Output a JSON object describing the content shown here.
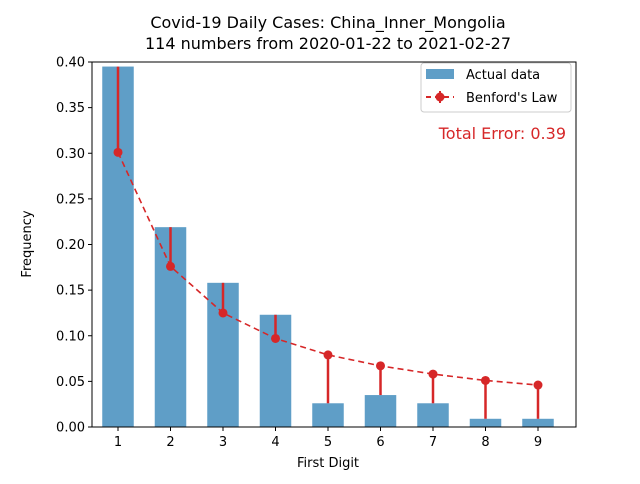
{
  "chart_data": {
    "type": "bar",
    "title_line1": "Covid-19 Daily Cases: China_Inner_Mongolia",
    "title_line2": "114 numbers from 2020-01-22 to 2021-02-27",
    "xlabel": "First Digit",
    "ylabel": "Frequency",
    "categories": [
      "1",
      "2",
      "3",
      "4",
      "5",
      "6",
      "7",
      "8",
      "9"
    ],
    "series": [
      {
        "name": "Actual data",
        "type": "bar",
        "color": "#5f9ec7",
        "values": [
          0.395,
          0.219,
          0.158,
          0.123,
          0.026,
          0.035,
          0.026,
          0.009,
          0.009
        ]
      },
      {
        "name": "Benford's Law",
        "type": "line",
        "color": "#d62728",
        "values": [
          0.301,
          0.176,
          0.125,
          0.097,
          0.079,
          0.067,
          0.058,
          0.051,
          0.046
        ]
      }
    ],
    "ylim": [
      0,
      0.4
    ],
    "yticks": [
      "0.00",
      "0.05",
      "0.10",
      "0.15",
      "0.20",
      "0.25",
      "0.30",
      "0.35",
      "0.40"
    ],
    "legend_position": "top-right",
    "annotation": "Total Error: 0.39",
    "grid": false
  }
}
